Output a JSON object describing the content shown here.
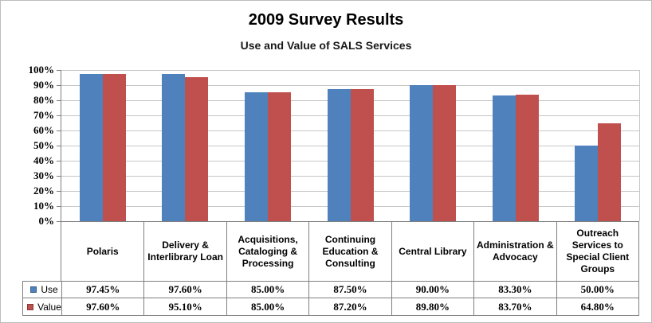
{
  "title": "2009 Survey Results",
  "subtitle": "Use and Value of SALS Services",
  "colors": {
    "use_series": "#4F81BD",
    "value_series": "#C0504D",
    "gridline": "#C6C6C6",
    "axis_and_table_border": "#7F7F7F"
  },
  "chart_data": {
    "type": "bar",
    "title": "2009 Survey Results",
    "subtitle": "Use and Value of SALS Services",
    "categories": [
      "Polaris",
      "Delivery &\nInterlibrary Loan",
      "Acquisitions,\nCataloging &\nProcessing",
      "Continuing\nEducation &\nConsulting",
      "Central Library",
      "Administration &\nAdvocacy",
      "Outreach\nServices to\nSpecial Client\nGroups"
    ],
    "series": [
      {
        "name": "Use",
        "color": "#4F81BD",
        "values": [
          97.45,
          97.6,
          85.0,
          87.5,
          90.0,
          83.3,
          50.0
        ]
      },
      {
        "name": "Value",
        "color": "#C0504D",
        "values": [
          97.6,
          95.1,
          85.0,
          87.2,
          89.8,
          83.7,
          64.8
        ]
      }
    ],
    "ylim": [
      0,
      100
    ],
    "yticks_percent": [
      0,
      10,
      20,
      30,
      40,
      50,
      60,
      70,
      80,
      90,
      100
    ],
    "ytick_labels": [
      "0%",
      "10%",
      "20%",
      "30%",
      "40%",
      "50%",
      "60%",
      "70%",
      "80%",
      "90%",
      "100%"
    ],
    "grid": true,
    "legend_position": "data-table-left"
  },
  "table": {
    "rows": [
      {
        "label": "Use",
        "swatch_color": "#4F81BD",
        "values": [
          "97.45%",
          "97.60%",
          "85.00%",
          "87.50%",
          "90.00%",
          "83.30%",
          "50.00%"
        ]
      },
      {
        "label": "Value",
        "swatch_color": "#C0504D",
        "values": [
          "97.60%",
          "95.10%",
          "85.00%",
          "87.20%",
          "89.80%",
          "83.70%",
          "64.80%"
        ]
      }
    ]
  }
}
